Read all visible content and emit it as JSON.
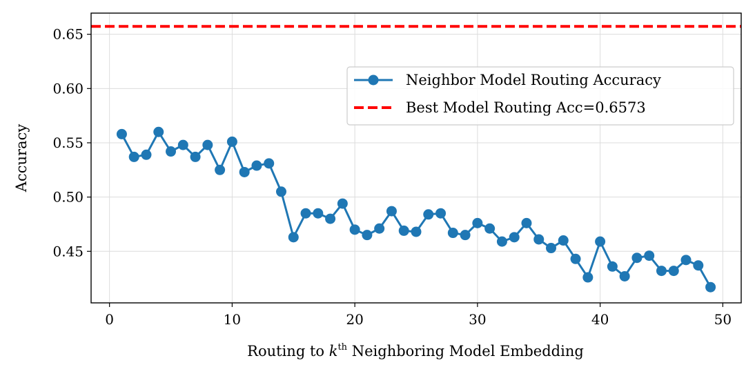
{
  "chart_data": {
    "type": "line",
    "xlabel_prefix": "Routing to ",
    "xlabel_k": "k",
    "xlabel_sup": "th",
    "xlabel_suffix": " Neighboring Model Embedding",
    "ylabel": "Accuracy",
    "xlim": [
      -1.5,
      51.5
    ],
    "ylim": [
      0.4025,
      0.6695
    ],
    "xticks": [
      0,
      10,
      20,
      30,
      40,
      50
    ],
    "yticks": [
      0.45,
      0.5,
      0.55,
      0.6,
      0.65
    ],
    "ytick_labels": [
      "0.45",
      "0.50",
      "0.55",
      "0.60",
      "0.65"
    ],
    "grid": true,
    "legend_placement": "upper-right",
    "series": [
      {
        "name": "Neighbor Model Routing Accuracy",
        "color": "#1f77b4",
        "style": "line-marker",
        "x": [
          1,
          2,
          3,
          4,
          5,
          6,
          7,
          8,
          9,
          10,
          11,
          12,
          13,
          14,
          15,
          16,
          17,
          18,
          19,
          20,
          21,
          22,
          23,
          24,
          25,
          26,
          27,
          28,
          29,
          30,
          31,
          32,
          33,
          34,
          35,
          36,
          37,
          38,
          39,
          40,
          41,
          42,
          43,
          44,
          45,
          46,
          47,
          48,
          49
        ],
        "y": [
          0.558,
          0.537,
          0.539,
          0.56,
          0.542,
          0.548,
          0.537,
          0.548,
          0.525,
          0.551,
          0.523,
          0.529,
          0.531,
          0.505,
          0.463,
          0.485,
          0.485,
          0.48,
          0.494,
          0.47,
          0.465,
          0.471,
          0.487,
          0.469,
          0.468,
          0.484,
          0.485,
          0.467,
          0.465,
          0.476,
          0.471,
          0.459,
          0.463,
          0.476,
          0.461,
          0.453,
          0.46,
          0.443,
          0.426,
          0.459,
          0.436,
          0.427,
          0.444,
          0.446,
          0.432,
          0.432,
          0.442,
          0.437,
          0.417
        ]
      },
      {
        "name": "Best Model Routing Acc=0.6573",
        "color": "#ff0000",
        "style": "dashed-hline",
        "y": 0.6573
      }
    ]
  }
}
